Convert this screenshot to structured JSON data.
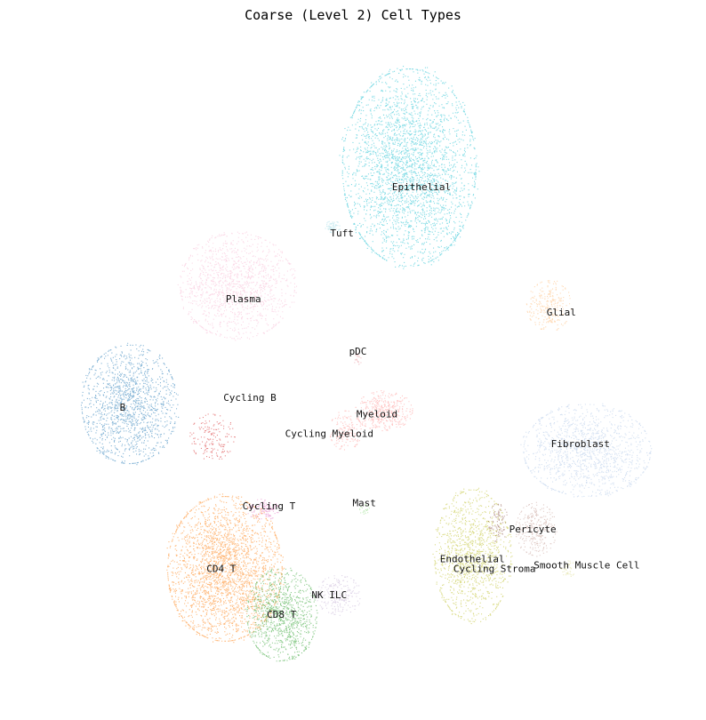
{
  "chart_data": {
    "type": "scatter",
    "title": "Coarse (Level 2) Cell Types",
    "xlabel": "",
    "ylabel": "",
    "grid": false,
    "axes_visible": false,
    "legend": "none",
    "xlim": [
      0,
      100
    ],
    "ylim": [
      0,
      100
    ],
    "clusters": [
      {
        "name": "Epithelial",
        "color": "#17becf",
        "cx": 58,
        "cy": 80,
        "rx": 10.5,
        "ry": 15,
        "n": 3000,
        "label": [
          60,
          77
        ]
      },
      {
        "name": "Tuft",
        "color": "#9edae5",
        "cx": 46,
        "cy": 71,
        "rx": 1.2,
        "ry": 0.9,
        "n": 60,
        "label": [
          47.5,
          70
        ]
      },
      {
        "name": "Plasma",
        "color": "#f7b6d2",
        "cx": 31,
        "cy": 62,
        "rx": 9,
        "ry": 8,
        "n": 1300,
        "label": [
          32,
          60
        ]
      },
      {
        "name": "Glial",
        "color": "#ffbb78",
        "cx": 80,
        "cy": 59,
        "rx": 3.5,
        "ry": 3.8,
        "n": 260,
        "label": [
          82,
          58
        ]
      },
      {
        "name": "pDC",
        "color": "#e7969c",
        "cx": 50,
        "cy": 51,
        "rx": 0.7,
        "ry": 1.2,
        "n": 25,
        "label": [
          50,
          52
        ]
      },
      {
        "name": "B",
        "color": "#1f77b4",
        "cx": 14,
        "cy": 44,
        "rx": 7.5,
        "ry": 9,
        "n": 1400,
        "label": [
          13,
          43.5
        ]
      },
      {
        "name": "Cycling B",
        "color": "#d62728",
        "cx": 27,
        "cy": 39,
        "rx": 3.5,
        "ry": 3.5,
        "n": 160,
        "label": [
          33,
          45
        ]
      },
      {
        "name": "Myeloid",
        "color": "#ff9896",
        "cx": 54,
        "cy": 43,
        "rx": 4.5,
        "ry": 3,
        "n": 420,
        "label": [
          53,
          42.5
        ]
      },
      {
        "name": "Cycling Myeloid",
        "color": "#ff9896",
        "cx": 48,
        "cy": 40,
        "rx": 2.5,
        "ry": 3,
        "n": 160,
        "label": [
          45.5,
          39.5
        ]
      },
      {
        "name": "Fibroblast",
        "color": "#aec7e8",
        "cx": 86,
        "cy": 37,
        "rx": 10,
        "ry": 7,
        "n": 1300,
        "label": [
          85,
          38
        ]
      },
      {
        "name": "Cycling T",
        "color": "#e377c2",
        "cx": 35,
        "cy": 28,
        "rx": 2.5,
        "ry": 1.6,
        "n": 120,
        "label": [
          36,
          28.5
        ]
      },
      {
        "name": "Mast",
        "color": "#98df8a",
        "cx": 51,
        "cy": 28,
        "rx": 0.8,
        "ry": 0.8,
        "n": 25,
        "label": [
          51,
          29
        ]
      },
      {
        "name": "Pericyte",
        "color": "#c49c94",
        "cx": 78,
        "cy": 25,
        "rx": 3.2,
        "ry": 4,
        "n": 280,
        "label": [
          77.5,
          25
        ]
      },
      {
        "name": "Endothelial",
        "color": "#bcbd22",
        "cx": 68,
        "cy": 21,
        "rx": 6,
        "ry": 10,
        "n": 1200,
        "label": [
          68,
          20.5
        ]
      },
      {
        "name": "Cycling Stroma",
        "color": "#8c564b",
        "cx": 72,
        "cy": 26,
        "rx": 1.5,
        "ry": 3,
        "n": 90,
        "label": [
          71.5,
          19
        ]
      },
      {
        "name": "Smooth Muscle Cell",
        "color": "#dbdb8d",
        "cx": 83,
        "cy": 19,
        "rx": 1.2,
        "ry": 1.2,
        "n": 40,
        "label": [
          86,
          19.5
        ]
      },
      {
        "name": "CD4 T",
        "color": "#ff7f0e",
        "cx": 29,
        "cy": 19,
        "rx": 9,
        "ry": 11,
        "n": 2600,
        "label": [
          28.5,
          19
        ]
      },
      {
        "name": "CD8 T",
        "color": "#2ca02c",
        "cx": 38,
        "cy": 12,
        "rx": 5.5,
        "ry": 7,
        "n": 1000,
        "label": [
          38,
          12
        ]
      },
      {
        "name": "NK ILC",
        "color": "#c5b0d5",
        "cx": 47,
        "cy": 15,
        "rx": 3.5,
        "ry": 3,
        "n": 220,
        "label": [
          45.5,
          15
        ]
      }
    ]
  }
}
